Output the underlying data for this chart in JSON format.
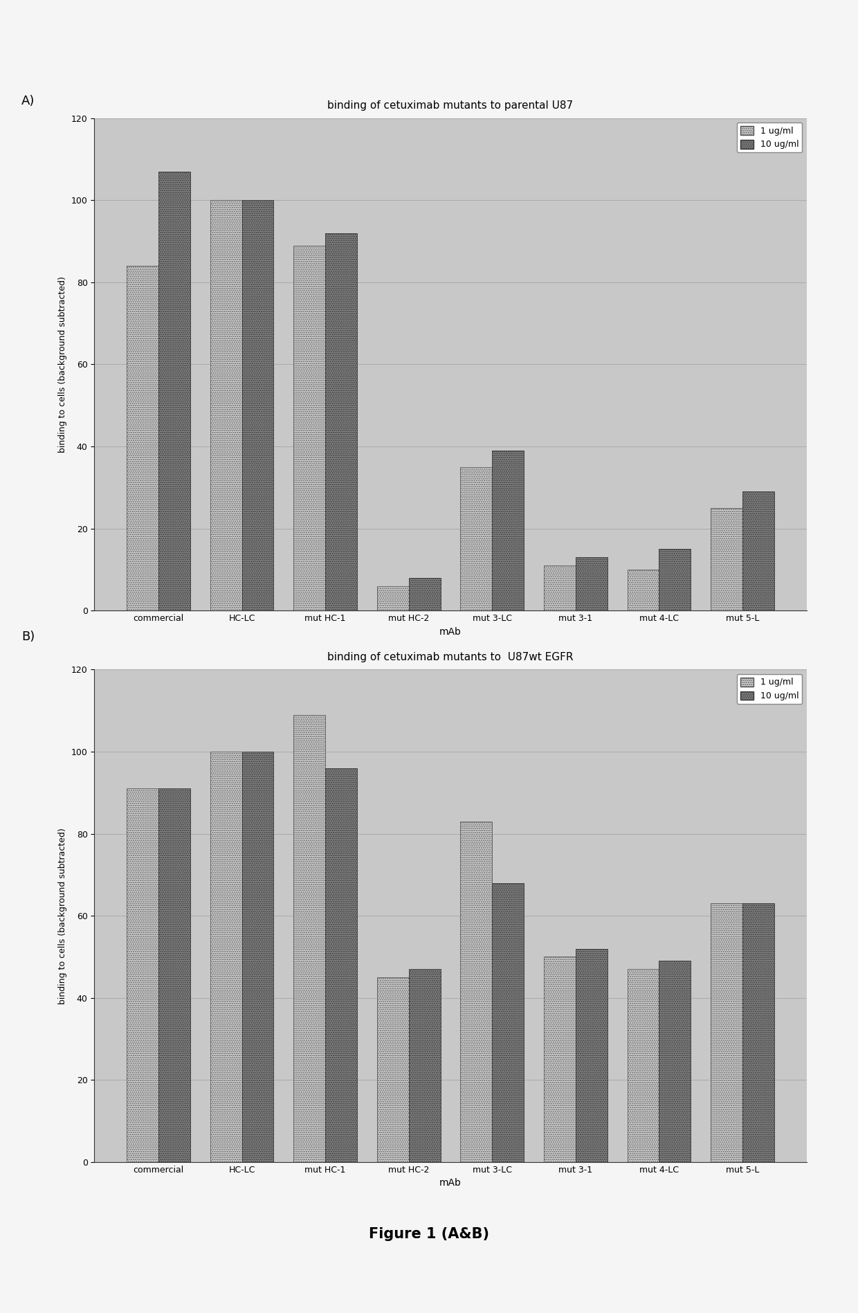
{
  "chart_A": {
    "title": "binding of cetuximab mutants to parental U87",
    "categories": [
      "commercial",
      "HC-LC",
      "mut HC-1",
      "mut HC-2",
      "mut 3-LC",
      "mut 3-1",
      "mut 4-LC",
      "mut 5-L"
    ],
    "values_1ugml": [
      84,
      100,
      89,
      6,
      35,
      11,
      10,
      25
    ],
    "values_10ugml": [
      107,
      100,
      92,
      8,
      39,
      13,
      15,
      29
    ],
    "ylim": [
      0,
      120
    ],
    "yticks": [
      0,
      20,
      40,
      60,
      80,
      100,
      120
    ]
  },
  "chart_B": {
    "title": "binding of cetuximab mutants to  U87wt EGFR",
    "categories": [
      "commercial",
      "HC-LC",
      "mut HC-1",
      "mut HC-2",
      "mut 3-LC",
      "mut 3-1",
      "mut 4-LC",
      "mut 5-L"
    ],
    "values_1ugml": [
      91,
      100,
      109,
      45,
      83,
      50,
      47,
      63
    ],
    "values_10ugml": [
      91,
      100,
      96,
      47,
      68,
      52,
      49,
      63
    ],
    "ylim": [
      0,
      120
    ],
    "yticks": [
      0,
      20,
      40,
      60,
      80,
      100,
      120
    ]
  },
  "xlabel": "mAb",
  "ylabel": "binding to cells (background subtracted)",
  "legend_labels": [
    "1 ug/ml",
    "10 ug/ml"
  ],
  "color_1ugml": "#d8d8d8",
  "color_10ugml": "#888888",
  "hatch_1ugml": ".....",
  "hatch_10ugml": ".....",
  "bar_width": 0.38,
  "bg_color": "#e8e8e8",
  "plot_bg_color": "#c8c8c8",
  "grid_color": "#aaaaaa",
  "figure_caption": "Figure 1 (A&B)",
  "caption_fontsize": 15
}
